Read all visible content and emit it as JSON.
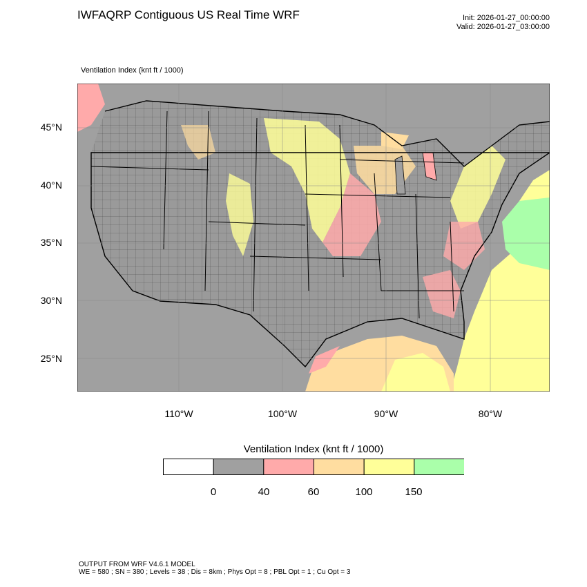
{
  "header": {
    "title": "IWFAQRP Contiguous US Real Time WRF",
    "init": "Init: 2026-01-27_00:00:00",
    "valid": "Valid: 2026-01-27_03:00:00"
  },
  "map": {
    "field_label": "Ventilation Index   (knt ft / 1000)",
    "lat_labels": [
      "45°N",
      "40°N",
      "35°N",
      "30°N",
      "25°N"
    ],
    "lon_labels": [
      "110°W",
      "100°W",
      "90°W",
      "80°W"
    ]
  },
  "legend": {
    "title": "Ventilation Index  (knt ft / 1000)",
    "tick_labels": [
      "0",
      "40",
      "60",
      "100",
      "150"
    ],
    "bins": [
      {
        "color": "#ffffff"
      },
      {
        "color": "#a0a0a0"
      },
      {
        "color": "#ffaaaa"
      },
      {
        "color": "#ffdda0"
      },
      {
        "color": "#ffff99"
      },
      {
        "color": "#aaffaa"
      }
    ]
  },
  "footer": {
    "line1": "OUTPUT FROM WRF V4.6.1 MODEL",
    "line2": "WE = 580 ; SN = 380 ; Levels = 38 ; Dis = 8km ; Phys Opt = 8 ; PBL Opt = 1 ; Cu Opt = 3"
  }
}
